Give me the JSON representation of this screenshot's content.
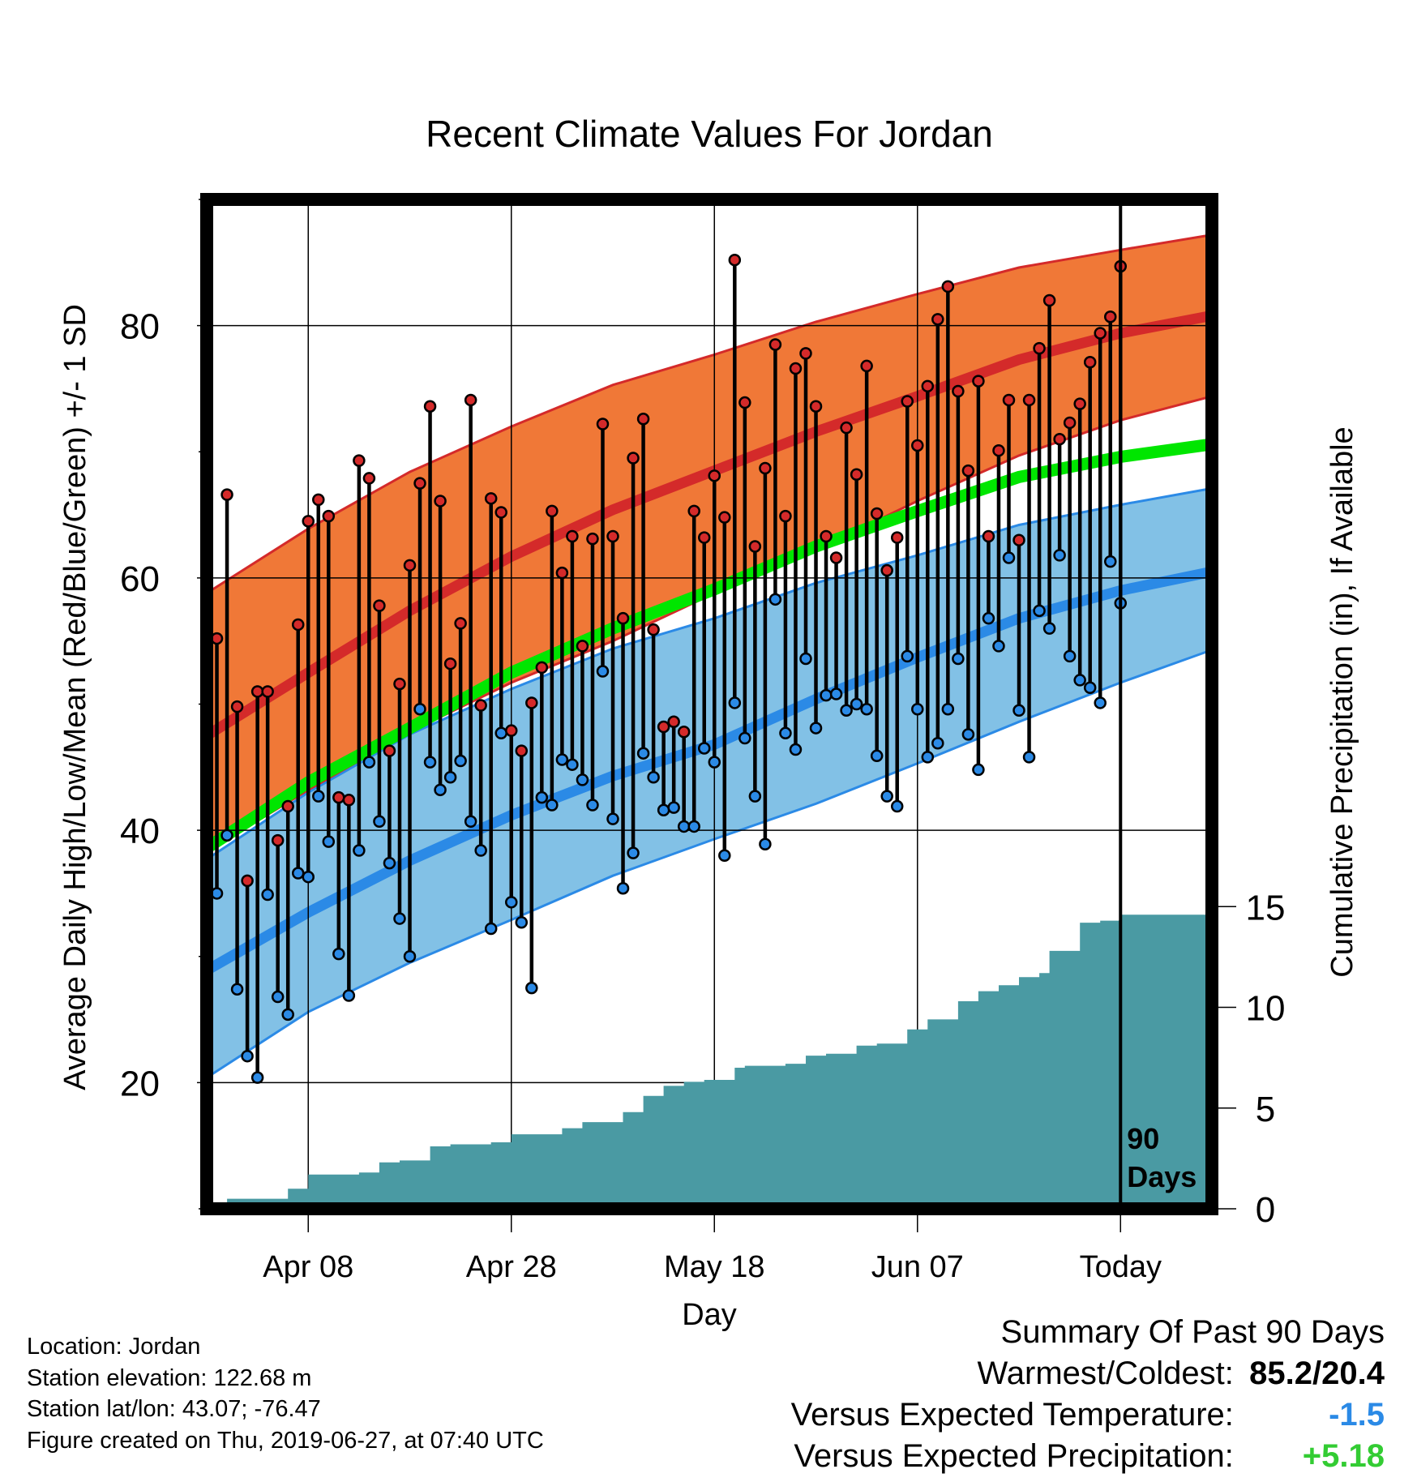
{
  "chart_data": {
    "type": "line",
    "title": "Recent Climate Values For Jordan",
    "xlabel": "Day",
    "ylabel": "Average Daily High/Low/Mean (Red/Blue/Green) +/- 1 SD",
    "ylabel_right": "Cumulative Precipitation (in), If Available",
    "x_tick_labels": [
      "Apr 08",
      "Apr 28",
      "May 18",
      "Jun 07",
      "Today"
    ],
    "x_tick_days": [
      -80,
      -60,
      -40,
      -20,
      0
    ],
    "y_ticks": [
      20,
      40,
      60,
      80
    ],
    "y_range": [
      10,
      90
    ],
    "y_right_ticks": [
      0,
      5,
      10,
      15
    ],
    "x_range_days": [
      -90,
      9
    ],
    "today_label": "90\nDays",
    "colors": {
      "high_band": "#f07837",
      "high_line": "#d42a2a",
      "low_band": "#82c1e6",
      "low_line": "#2b8ae6",
      "mean_line": "#00e600",
      "precip": "#4a9aa3",
      "obs_high_dot": "#d42a2a",
      "obs_low_dot": "#2b8ae6"
    },
    "normals": {
      "x_days": [
        -90,
        -80,
        -70,
        -60,
        -50,
        -40,
        -30,
        -20,
        -10,
        0,
        9
      ],
      "high_mean": [
        47.5,
        52.5,
        57.4,
        61.7,
        65.4,
        68.5,
        71.6,
        74.4,
        77.3,
        79.4,
        80.8
      ],
      "high_upper": [
        58.8,
        63.9,
        68.4,
        72.0,
        75.3,
        77.7,
        80.3,
        82.5,
        84.6,
        86.0,
        87.2
      ],
      "high_lower": [
        38.3,
        43.2,
        47.8,
        51.7,
        55.0,
        58.8,
        62.2,
        66.1,
        69.7,
        72.5,
        74.4
      ],
      "low_mean": [
        28.9,
        33.5,
        37.6,
        41.2,
        44.3,
        46.8,
        50.4,
        53.7,
        56.8,
        59.0,
        60.5
      ],
      "low_upper": [
        37.7,
        43.0,
        47.6,
        51.2,
        54.4,
        56.8,
        59.6,
        61.8,
        64.2,
        65.8,
        67.1
      ],
      "low_lower": [
        20.4,
        25.6,
        29.5,
        32.9,
        36.4,
        39.3,
        42.1,
        45.3,
        48.6,
        51.7,
        54.3
      ],
      "daily_mean": [
        38.6,
        43.8,
        48.1,
        52.5,
        56.0,
        59.1,
        62.5,
        65.3,
        68.0,
        69.6,
        70.6
      ]
    },
    "observed": {
      "x_days": [
        -89,
        -88,
        -87,
        -86,
        -85,
        -84,
        -83,
        -82,
        -81,
        -80,
        -79,
        -78,
        -77,
        -76,
        -75,
        -74,
        -73,
        -72,
        -71,
        -70,
        -69,
        -68,
        -67,
        -66,
        -65,
        -64,
        -63,
        -62,
        -61,
        -60,
        -59,
        -58,
        -57,
        -56,
        -55,
        -54,
        -53,
        -52,
        -51,
        -50,
        -49,
        -48,
        -47,
        -46,
        -45,
        -44,
        -43,
        -42,
        -41,
        -40,
        -39,
        -38,
        -37,
        -36,
        -35,
        -34,
        -33,
        -32,
        -31,
        -30,
        -29,
        -28,
        -27,
        -26,
        -25,
        -24,
        -23,
        -22,
        -21,
        -20,
        -19,
        -18,
        -17,
        -16,
        -15,
        -14,
        -13,
        -12,
        -11,
        -10,
        -9,
        -8,
        -7,
        -6,
        -5,
        -4,
        -3,
        -2,
        -1,
        0
      ],
      "high": [
        55.2,
        66.6,
        49.8,
        36.0,
        51.0,
        51.0,
        39.2,
        41.9,
        56.3,
        64.5,
        66.2,
        64.9,
        42.6,
        42.4,
        69.3,
        67.9,
        57.8,
        46.3,
        51.6,
        61.0,
        67.5,
        73.6,
        66.1,
        53.2,
        56.4,
        74.1,
        49.9,
        66.3,
        65.2,
        47.9,
        46.3,
        50.1,
        52.9,
        65.3,
        60.4,
        63.3,
        54.6,
        63.1,
        72.2,
        63.3,
        56.8,
        69.5,
        72.6,
        55.9,
        48.2,
        48.6,
        47.8,
        65.3,
        63.2,
        68.1,
        64.8,
        85.2,
        73.9,
        62.5,
        68.7,
        78.5,
        64.9,
        76.6,
        77.8,
        73.6,
        63.3,
        61.6,
        71.9,
        68.2,
        76.8,
        65.1,
        60.6,
        63.2,
        74.0,
        70.5,
        75.2,
        80.5,
        83.1,
        74.8,
        68.5,
        75.6,
        63.3,
        70.1,
        74.1,
        63.0,
        74.1,
        78.2,
        82.0,
        71.0,
        72.3,
        73.8,
        77.1,
        79.4,
        80.7,
        84.7
      ],
      "low": [
        35.0,
        39.6,
        27.4,
        22.1,
        20.4,
        34.9,
        26.8,
        25.4,
        36.6,
        36.3,
        42.7,
        39.1,
        30.2,
        26.9,
        38.4,
        45.4,
        40.7,
        37.4,
        33.0,
        30.0,
        49.6,
        45.4,
        43.2,
        44.2,
        45.5,
        40.7,
        38.4,
        32.2,
        47.7,
        34.3,
        32.7,
        27.5,
        42.6,
        42.0,
        45.6,
        45.2,
        44.0,
        42.0,
        52.6,
        40.9,
        35.4,
        38.2,
        46.1,
        44.2,
        41.6,
        41.8,
        40.3,
        40.3,
        46.5,
        45.4,
        38.0,
        50.1,
        47.3,
        42.7,
        38.9,
        58.3,
        47.7,
        46.4,
        53.6,
        48.1,
        50.7,
        50.8,
        49.5,
        50.0,
        49.6,
        45.9,
        42.7,
        41.9,
        53.8,
        49.6,
        45.8,
        46.9,
        49.6,
        53.6,
        47.6,
        44.8,
        56.8,
        54.6,
        61.6,
        49.5,
        45.8,
        57.4,
        56.0,
        61.8,
        53.8,
        51.9,
        51.3,
        50.1,
        61.3,
        58.0
      ]
    },
    "precip_cumulative": {
      "x_days": [
        -90,
        -88,
        -86,
        -82,
        -80,
        -76,
        -75,
        -73,
        -71,
        -68,
        -66,
        -62,
        -60,
        -55,
        -53,
        -49,
        -47,
        -45,
        -43,
        -41,
        -38,
        -37,
        -33,
        -31,
        -29,
        -26,
        -24,
        -21,
        -19,
        -16,
        -14,
        -12,
        -10,
        -8,
        -7,
        -4,
        -2,
        0,
        9
      ],
      "values": [
        0.0,
        0.5,
        0.5,
        1.0,
        1.7,
        1.7,
        1.8,
        2.3,
        2.4,
        3.1,
        3.2,
        3.3,
        3.7,
        4.0,
        4.3,
        4.8,
        5.6,
        6.1,
        6.3,
        6.4,
        7.0,
        7.1,
        7.2,
        7.6,
        7.7,
        8.1,
        8.2,
        8.9,
        9.4,
        10.3,
        10.8,
        11.1,
        11.5,
        11.7,
        12.8,
        14.2,
        14.3,
        14.6,
        14.6
      ]
    }
  },
  "footer": {
    "location": "Location: Jordan",
    "elevation": "Station elevation: 122.68 m",
    "latlon": "Station lat/lon: 43.07; -76.47",
    "created": "Figure created on Thu, 2019-06-27, at 07:40 UTC"
  },
  "summary": {
    "title": "Summary Of Past 90 Days",
    "warmest_label": "Warmest/Coldest:",
    "warmest_value": "85.2/20.4",
    "temp_label": "Versus Expected Temperature:",
    "temp_value": "-1.5",
    "temp_color": "#2b8ae6",
    "precip_label": "Versus Expected Precipitation:",
    "precip_value": "+5.18",
    "precip_color": "#33cc33"
  }
}
